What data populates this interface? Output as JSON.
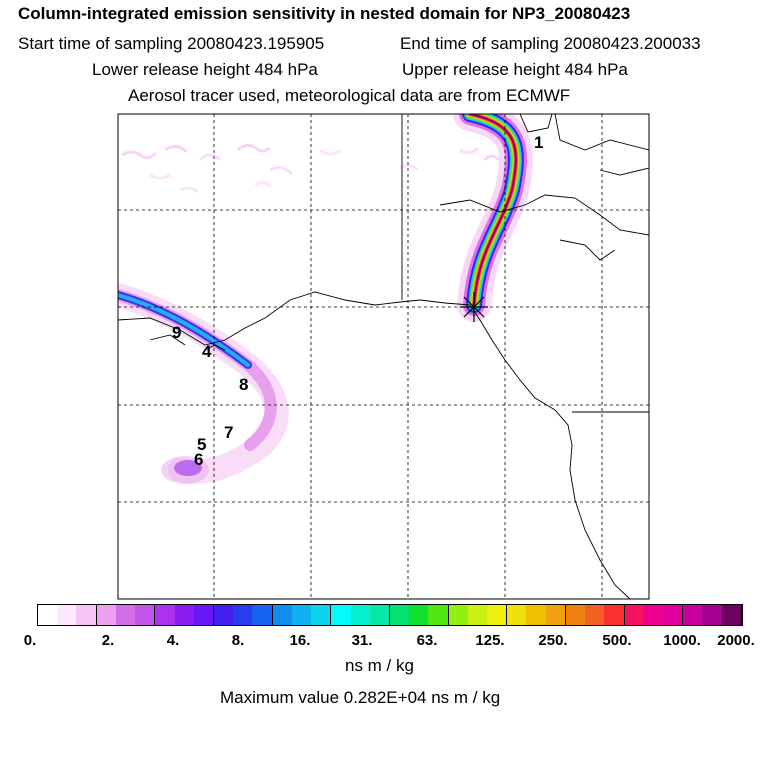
{
  "header": {
    "title": "Column-integrated emission sensitivity in nested domain for NP3_20080423",
    "start_time": "Start time of sampling 20080423.195905",
    "end_time": "End time of sampling 20080423.200033",
    "lower_release": "Lower release height  484 hPa",
    "upper_release": "Upper release height  484 hPa",
    "tracer_info": "Aerosol tracer used, meteorological data are from ECMWF"
  },
  "map": {
    "point_labels": [
      "1",
      "4",
      "5",
      "6",
      "7",
      "8",
      "9"
    ],
    "receptor_marker": "star-cross"
  },
  "colorbar": {
    "tick_labels": [
      "0.",
      "2.",
      "4.",
      "8.",
      "16.",
      "31.",
      "63.",
      "125.",
      "250.",
      "500.",
      "1000.",
      "2000."
    ],
    "unit": "ns m / kg",
    "max_value": "Maximum value  0.282E+04 ns m / kg",
    "colors": [
      "#ffffff",
      "#fde8fd",
      "#f6c4f6",
      "#eea1f0",
      "#d36fe8",
      "#c254ee",
      "#b030ef",
      "#8a1cf0",
      "#6a18f7",
      "#4220ee",
      "#2a3cf0",
      "#1664f0",
      "#128cf0",
      "#10b0f0",
      "#0ad4f0",
      "#05fafa",
      "#05f0d0",
      "#05e8a8",
      "#05e070",
      "#10e030",
      "#50e810",
      "#90f010",
      "#c8f010",
      "#f0f010",
      "#f0e010",
      "#f0c000",
      "#f0a010",
      "#f08010",
      "#f06020",
      "#f83030",
      "#f81060",
      "#f00090",
      "#e000a0",
      "#c800a0",
      "#a80090",
      "#700060"
    ]
  }
}
